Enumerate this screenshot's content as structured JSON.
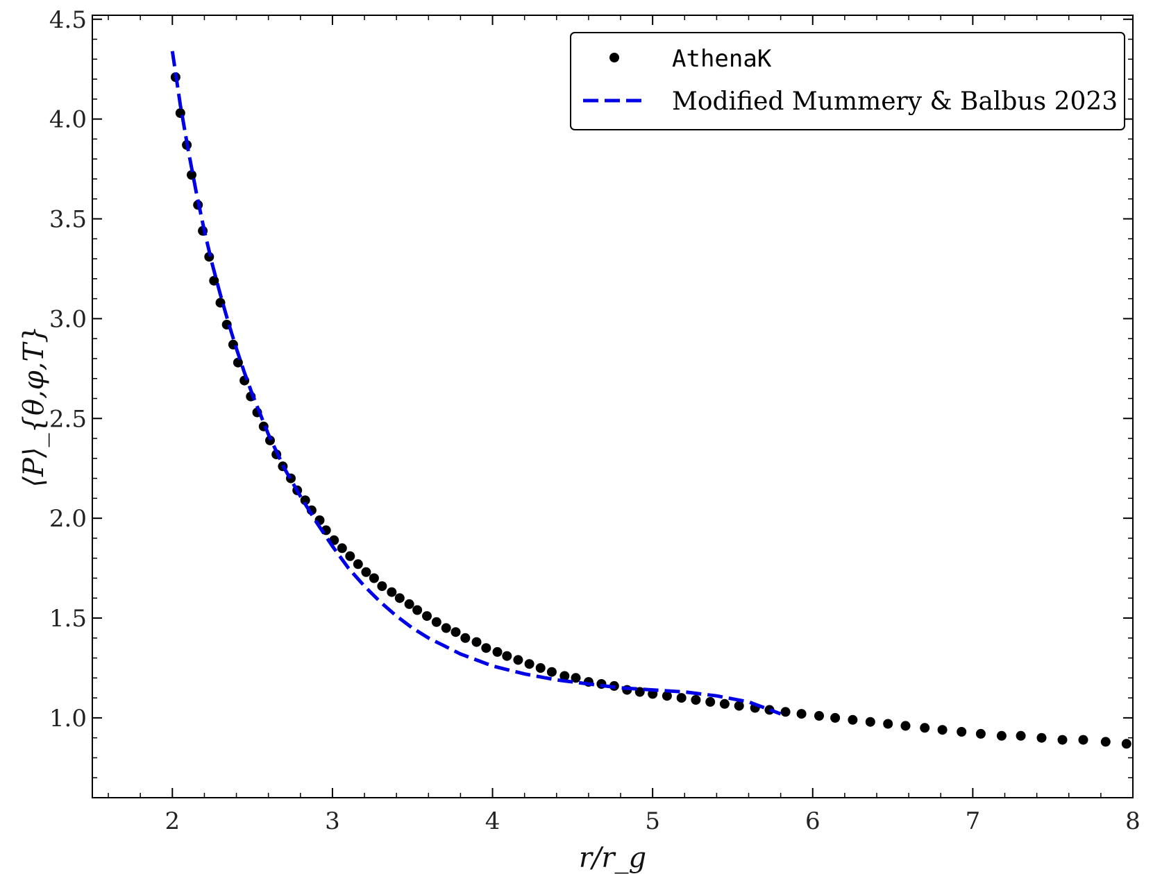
{
  "chart_data": {
    "type": "scatter",
    "title": "",
    "xlabel": "r/r_g",
    "ylabel": "⟨P⟩_{θ,φ,T}",
    "xlim": [
      1.5,
      8.0
    ],
    "ylim": [
      0.6,
      4.52
    ],
    "x_ticks": [
      2,
      3,
      4,
      5,
      6,
      7,
      8
    ],
    "x_tick_labels": [
      "2",
      "3",
      "4",
      "5",
      "6",
      "7",
      "8"
    ],
    "y_ticks": [
      1.0,
      1.5,
      2.0,
      2.5,
      3.0,
      3.5,
      4.0,
      4.5
    ],
    "y_tick_labels": [
      "1.0",
      "1.5",
      "2.0",
      "2.5",
      "3.0",
      "3.5",
      "4.0",
      "4.5"
    ],
    "grid": false,
    "legend": "top-right",
    "series": [
      {
        "name": "AthenaK",
        "style": "markers",
        "color": "#000000",
        "x": [
          2.02,
          2.05,
          2.09,
          2.12,
          2.16,
          2.19,
          2.23,
          2.26,
          2.3,
          2.34,
          2.38,
          2.41,
          2.45,
          2.49,
          2.53,
          2.57,
          2.61,
          2.65,
          2.69,
          2.74,
          2.78,
          2.83,
          2.87,
          2.92,
          2.96,
          3.01,
          3.06,
          3.11,
          3.16,
          3.21,
          3.26,
          3.31,
          3.37,
          3.42,
          3.48,
          3.53,
          3.59,
          3.65,
          3.71,
          3.77,
          3.83,
          3.9,
          3.96,
          4.03,
          4.09,
          4.16,
          4.23,
          4.3,
          4.37,
          4.45,
          4.52,
          4.6,
          4.68,
          4.76,
          4.84,
          4.92,
          5.0,
          5.09,
          5.18,
          5.27,
          5.36,
          5.45,
          5.54,
          5.64,
          5.73,
          5.83,
          5.93,
          6.04,
          6.14,
          6.25,
          6.36,
          6.47,
          6.58,
          6.7,
          6.81,
          6.93,
          7.05,
          7.18,
          7.3,
          7.43,
          7.56,
          7.69,
          7.83,
          7.96
        ],
        "y": [
          4.21,
          4.03,
          3.87,
          3.72,
          3.57,
          3.44,
          3.31,
          3.19,
          3.08,
          2.97,
          2.87,
          2.78,
          2.69,
          2.61,
          2.53,
          2.46,
          2.39,
          2.32,
          2.26,
          2.2,
          2.14,
          2.09,
          2.04,
          1.99,
          1.94,
          1.89,
          1.85,
          1.81,
          1.77,
          1.73,
          1.7,
          1.66,
          1.63,
          1.6,
          1.57,
          1.54,
          1.51,
          1.48,
          1.45,
          1.43,
          1.4,
          1.38,
          1.35,
          1.33,
          1.31,
          1.29,
          1.27,
          1.25,
          1.23,
          1.21,
          1.2,
          1.18,
          1.17,
          1.16,
          1.14,
          1.13,
          1.12,
          1.11,
          1.1,
          1.09,
          1.08,
          1.07,
          1.06,
          1.05,
          1.04,
          1.03,
          1.02,
          1.01,
          1.0,
          0.99,
          0.98,
          0.97,
          0.96,
          0.95,
          0.94,
          0.93,
          0.92,
          0.91,
          0.91,
          0.9,
          0.89,
          0.89,
          0.88,
          0.87
        ]
      },
      {
        "name": "Modified Mummery & Balbus 2023",
        "style": "dashed-line",
        "color": "#0000e6",
        "x": [
          2.0,
          2.05,
          2.1,
          2.15,
          2.2,
          2.25,
          2.3,
          2.35,
          2.4,
          2.45,
          2.5,
          2.6,
          2.7,
          2.8,
          2.9,
          3.0,
          3.1,
          3.2,
          3.3,
          3.4,
          3.5,
          3.6,
          3.7,
          3.8,
          4.0,
          4.2,
          4.4,
          4.6,
          4.8,
          5.0,
          5.2,
          5.4,
          5.6,
          5.7,
          5.8
        ],
        "y": [
          4.34,
          4.07,
          3.84,
          3.63,
          3.44,
          3.27,
          3.12,
          2.98,
          2.85,
          2.73,
          2.62,
          2.42,
          2.25,
          2.11,
          1.98,
          1.86,
          1.75,
          1.66,
          1.58,
          1.51,
          1.45,
          1.4,
          1.36,
          1.32,
          1.26,
          1.22,
          1.19,
          1.17,
          1.15,
          1.14,
          1.13,
          1.11,
          1.08,
          1.05,
          1.02
        ]
      }
    ]
  }
}
